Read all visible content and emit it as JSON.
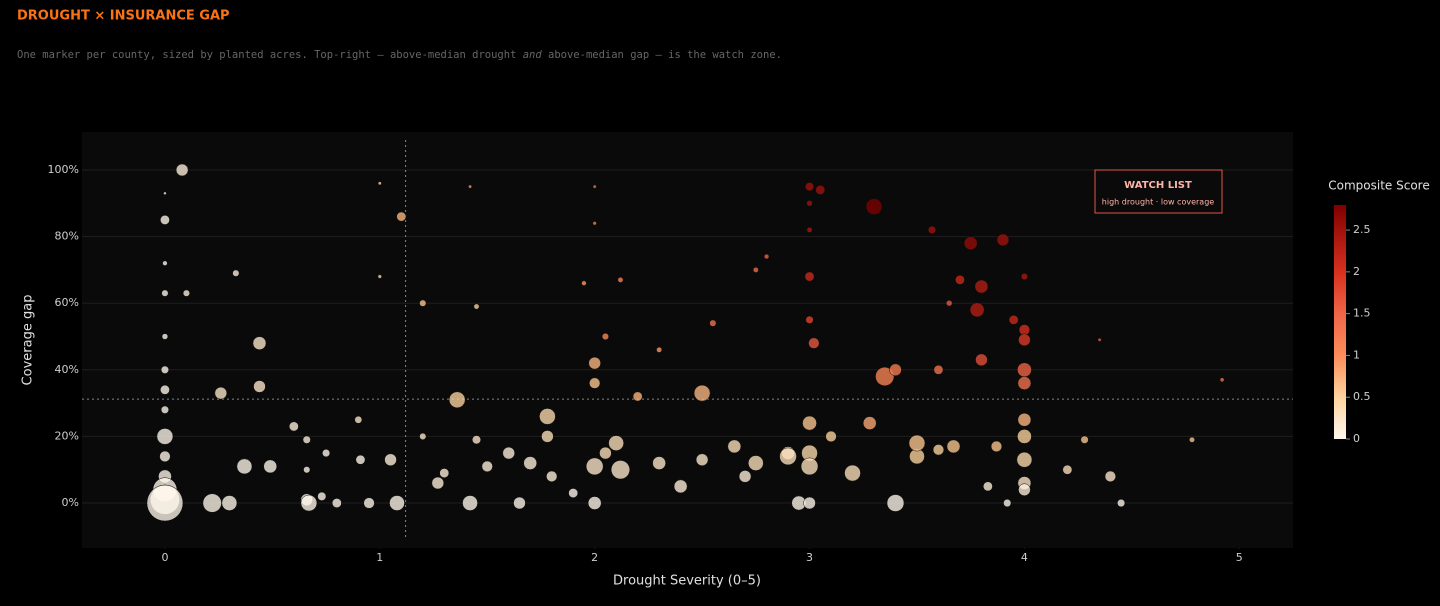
{
  "chart_data": {
    "type": "bubble",
    "title": "DROUGHT × INSURANCE GAP",
    "subtitle": [
      "One marker per county, sized by planted acres. Top-right — above-median drought ",
      "and",
      " above-median gap — is the watch zone."
    ],
    "x_label": "Drought Severity (0–5)",
    "y_label": "Coverage gap",
    "xlim": [
      -0.386,
      5.25
    ],
    "ylim": [
      -13.5,
      111.4
    ],
    "xticks": [
      0,
      1,
      2,
      3,
      4,
      5
    ],
    "yticks": [
      {
        "value": 0,
        "label": "0%"
      },
      {
        "value": 20,
        "label": "20%"
      },
      {
        "value": 40,
        "label": "40%"
      },
      {
        "value": 60,
        "label": "60%"
      },
      {
        "value": 80,
        "label": "80%"
      },
      {
        "value": 100,
        "label": "100%"
      }
    ],
    "grid": true,
    "median_x": 1.12,
    "median_y": 31.2,
    "annotation": {
      "title": "WATCH LIST",
      "text": "high drought · low coverage"
    },
    "colorbar_title": "Composite Score",
    "color_range": [
      0,
      2.8
    ],
    "colorbar_ticks": [
      0,
      0.5,
      1,
      1.5,
      2,
      2.5
    ],
    "colorscale": [
      [
        0,
        "#fff7ec"
      ],
      [
        0.5,
        "#fdd49e"
      ],
      [
        1,
        "#fc8d59"
      ],
      [
        1.5,
        "#ef6548"
      ],
      [
        2,
        "#d7301f"
      ],
      [
        2.8,
        "#7f0000"
      ]
    ],
    "x": [
      0,
      0,
      0,
      0,
      0,
      0,
      0,
      0,
      0,
      0,
      0,
      0,
      0,
      0,
      0.08,
      0.1,
      0.22,
      0.3,
      0.33,
      0.26,
      0.37,
      0.44,
      0.44,
      0.49,
      0.6,
      0.66,
      0.66,
      0.67,
      0.66,
      0.73,
      0.75,
      0.8,
      0.9,
      0.91,
      0.95,
      1.0,
      1.0,
      1.05,
      1.08,
      1.1,
      1.2,
      1.2,
      1.27,
      1.3,
      1.36,
      1.42,
      1.42,
      1.45,
      1.45,
      1.5,
      1.6,
      1.65,
      1.7,
      1.78,
      1.78,
      1.8,
      1.9,
      2.0,
      2.0,
      2.0,
      2.0,
      2.05,
      2.1,
      2.12,
      2.2,
      2.0,
      2.0,
      2.05,
      1.95,
      2.12,
      2.3,
      2.3,
      2.4,
      2.5,
      2.5,
      2.55,
      2.7,
      2.65,
      2.75,
      2.8,
      2.75,
      2.9,
      2.95,
      3.0,
      3.0,
      3.0,
      3.0,
      3.0,
      3.05,
      3.02,
      3.0,
      3.0,
      3.0,
      3.0,
      2.9,
      3.1,
      3.2,
      3.3,
      3.28,
      3.35,
      3.4,
      3.5,
      3.5,
      3.4,
      3.57,
      3.6,
      3.65,
      3.7,
      3.75,
      3.8,
      3.78,
      3.8,
      3.9,
      3.95,
      4.0,
      4.0,
      4.0,
      4.0,
      4.0,
      4.0,
      4.0,
      4.0,
      4.0,
      4.0,
      3.6,
      3.67,
      3.83,
      3.87,
      3.92,
      4.2,
      4.28,
      4.4,
      4.45,
      4.78,
      4.92,
      4.35
    ],
    "y": [
      93,
      85,
      72,
      63,
      50,
      40,
      34,
      28,
      20,
      14,
      8,
      4,
      1,
      0,
      100,
      63,
      0,
      0,
      69,
      33,
      11,
      48,
      35,
      11,
      23,
      1,
      10,
      0,
      19,
      2,
      15,
      0,
      25,
      13,
      0,
      96,
      68,
      13,
      0,
      86,
      60,
      20,
      6,
      9,
      31,
      0,
      95,
      59,
      19,
      11,
      15,
      0,
      12,
      26,
      20,
      8,
      3,
      36,
      42,
      11,
      0,
      15,
      18,
      10,
      32,
      95,
      84,
      50,
      66,
      67,
      46,
      12,
      5,
      13,
      33,
      54,
      8,
      17,
      12,
      74,
      70,
      15,
      0,
      95,
      90,
      82,
      68,
      55,
      94,
      48,
      24,
      15,
      11,
      0,
      14,
      20,
      9,
      89,
      24,
      38,
      40,
      14,
      18,
      0,
      82,
      40,
      60,
      67,
      78,
      65,
      58,
      43,
      79,
      55,
      52,
      49,
      40,
      36,
      25,
      20,
      13,
      6,
      4,
      68,
      16,
      17,
      5,
      17,
      0,
      10,
      19,
      8,
      0,
      19,
      37,
      49
    ],
    "size": [
      300,
      3000,
      800,
      1500,
      1200,
      2000,
      3000,
      2000,
      9000,
      4000,
      6000,
      20000,
      30000,
      45000,
      5000,
      1500,
      12000,
      8000,
      1500,
      5000,
      8000,
      6000,
      5000,
      6000,
      3000,
      5000,
      1500,
      9000,
      2000,
      2500,
      2000,
      3000,
      1800,
      3000,
      4000,
      400,
      500,
      5000,
      8000,
      3000,
      1500,
      1500,
      5000,
      3000,
      9000,
      8000,
      400,
      1000,
      2500,
      4000,
      5000,
      5000,
      6000,
      9000,
      5000,
      4000,
      3000,
      4000,
      5000,
      10000,
      6000,
      5000,
      8000,
      12000,
      3000,
      400,
      500,
      1500,
      800,
      1000,
      1000,
      6000,
      6000,
      5000,
      9000,
      1500,
      5000,
      6000,
      8000,
      800,
      1000,
      6000,
      7000,
      2500,
      1200,
      1000,
      3000,
      2000,
      3000,
      4000,
      7000,
      9000,
      10000,
      5000,
      10000,
      4000,
      9000,
      9000,
      6000,
      12000,
      5000,
      8000,
      9000,
      10000,
      2000,
      3000,
      1200,
      3000,
      6000,
      6000,
      7000,
      5000,
      5000,
      3000,
      4000,
      5000,
      7000,
      6000,
      6000,
      7000,
      8000,
      6000,
      5000,
      1500,
      4000,
      6000,
      3000,
      4000,
      2000,
      3000,
      2000,
      4000,
      2000,
      1000,
      600,
      400
    ],
    "score": [
      0,
      0,
      0,
      0,
      0,
      0,
      0,
      0,
      0,
      0,
      0,
      0,
      0,
      0,
      0.1,
      0.1,
      0,
      0,
      0.1,
      0.2,
      0,
      0.2,
      0.2,
      0,
      0.1,
      0,
      0,
      0,
      0.1,
      0,
      0,
      0,
      0.2,
      0,
      0,
      0.4,
      0.4,
      0.1,
      0,
      0.7,
      0.6,
      0.2,
      0.1,
      0.1,
      0.5,
      0,
      0.9,
      0.5,
      0.2,
      0.1,
      0.1,
      0,
      0.1,
      0.4,
      0.3,
      0.1,
      0,
      0.6,
      0.7,
      0.2,
      0,
      0.3,
      0.3,
      0.2,
      0.7,
      1.2,
      1.2,
      1.0,
      0.9,
      1.1,
      0.9,
      0.2,
      0.1,
      0.2,
      0.7,
      1.3,
      0.1,
      0.3,
      0.3,
      1.5,
      1.4,
      0.3,
      0,
      2.5,
      2.5,
      2.4,
      2.1,
      1.8,
      2.5,
      1.6,
      0.6,
      0.4,
      0.3,
      0,
      0.3,
      0.5,
      0.3,
      2.8,
      0.8,
      1.1,
      1.2,
      0.5,
      0.6,
      0,
      2.5,
      1.3,
      1.6,
      2.1,
      2.6,
      2.3,
      2.3,
      1.7,
      2.5,
      2.1,
      2.0,
      1.9,
      1.5,
      1.3,
      0.7,
      0.5,
      0.4,
      0.2,
      0.1,
      2.4,
      0.5,
      0.6,
      0.1,
      0.6,
      0,
      0.3,
      0.6,
      0.2,
      0,
      0.6,
      1.3,
      1.5
    ]
  }
}
